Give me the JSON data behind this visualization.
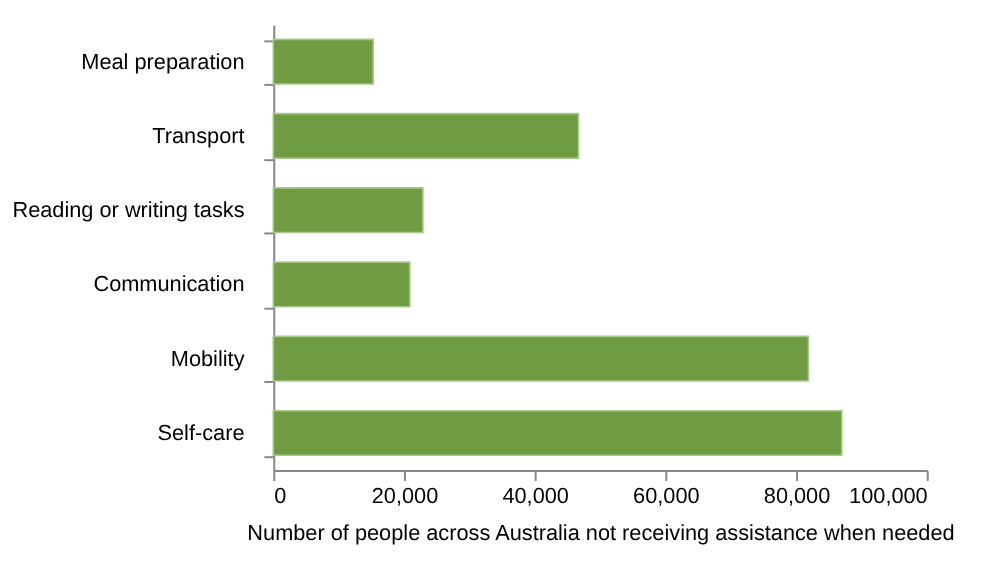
{
  "chart_data": {
    "type": "bar",
    "orientation": "horizontal",
    "xlabel": "Number of people across Australia not receiving assistance when needed",
    "categories": [
      "Meal preparation",
      "Transport",
      "Reading or writing tasks",
      "Communication",
      "Mobility",
      "Self-care"
    ],
    "values": [
      15300,
      46700,
      22900,
      20900,
      81900,
      87000
    ],
    "color": "#6f9c42",
    "xlim": [
      0,
      100000
    ],
    "xticks": [
      0,
      {
        "value": 20000,
        "label": "20,000"
      },
      {
        "value": 40000,
        "label": "40,000"
      },
      {
        "value": 60000,
        "label": "60,000"
      },
      {
        "value": 80000,
        "label": "80,000"
      },
      {
        "value": 100000,
        "label": "100,000"
      }
    ],
    "grid": false
  }
}
